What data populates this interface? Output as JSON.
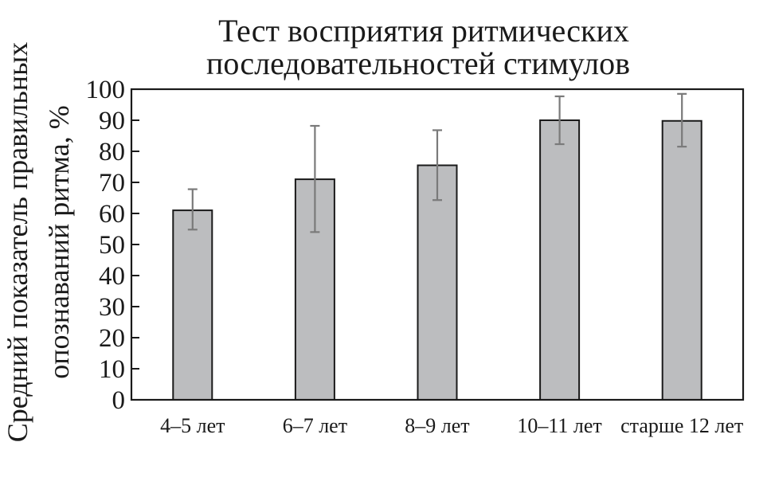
{
  "chart_data": {
    "type": "bar",
    "title_lines": [
      "Тест восприятия ритмических",
      "последовательностей стимулов"
    ],
    "ylabel_lines": [
      "Средний показатель правильных",
      "опознаваний ритма, %"
    ],
    "xlabel": "",
    "categories": [
      "4–5 лет",
      "6–7 лет",
      "8–9 лет",
      "10–11 лет",
      "старше 12 лет"
    ],
    "values": [
      61,
      71,
      75.5,
      90,
      89.8
    ],
    "error_low": [
      54.8,
      54,
      64.3,
      82.3,
      81.5
    ],
    "error_high": [
      67.8,
      88.2,
      86.8,
      97.7,
      98.5
    ],
    "ylim": [
      0,
      100
    ],
    "yticks": [
      "0",
      "10",
      "20",
      "30",
      "40",
      "50",
      "60",
      "70",
      "80",
      "90",
      "100"
    ],
    "grid": false,
    "colors": {
      "bar": "#bcbdbf",
      "error_bar": "#7a7a7a",
      "axis": "#1a1a1a"
    }
  }
}
